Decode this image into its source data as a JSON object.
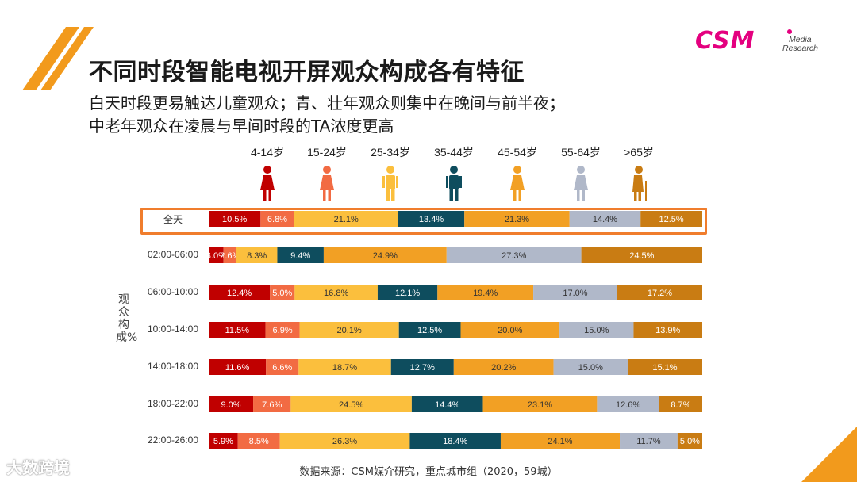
{
  "header": {
    "title": "不同时段智能电视开屏观众构成各有特征",
    "subtitle_line1": "白天时段更易触达儿童观众；青、壮年观众则集中在晚间与前半夜；",
    "subtitle_line2": "中老年观众在凌晨与早间时段的TA浓度更高"
  },
  "logo": {
    "main": "CSM",
    "line1": "Media",
    "line2": "Research"
  },
  "icons": [
    {
      "name": "child-figure-icon",
      "color": "#c00000"
    },
    {
      "name": "young-figure-icon",
      "color": "#f26b43"
    },
    {
      "name": "adult-figure-icon",
      "color": "#fbbf3d"
    },
    {
      "name": "man-figure-icon",
      "color": "#0e4d5e"
    },
    {
      "name": "woman-figure-icon",
      "color": "#f2a024"
    },
    {
      "name": "middle-aged-figure-icon",
      "color": "#b0b8c9"
    },
    {
      "name": "elder-figure-icon",
      "color": "#c97c13"
    }
  ],
  "chart_data": {
    "type": "bar",
    "stacked": true,
    "orientation": "horizontal",
    "normalized_percent": true,
    "ylabel": "观众构成%",
    "categories": [
      "全天",
      "02:00-06:00",
      "06:00-10:00",
      "10:00-14:00",
      "14:00-18:00",
      "18:00-22:00",
      "22:00-26:00"
    ],
    "highlighted_category": "全天",
    "series": [
      {
        "name": "4-14岁",
        "color": "#c00000",
        "values": [
          10.5,
          3.0,
          12.4,
          11.5,
          11.6,
          9.0,
          5.9
        ],
        "labels": [
          "10.5%",
          "3.0%",
          "12.4%",
          "11.5%",
          "11.6%",
          "9.0%",
          "5.9%"
        ]
      },
      {
        "name": "15-24岁",
        "color": "#f26b43",
        "values": [
          6.8,
          2.6,
          5.0,
          6.9,
          6.6,
          7.6,
          8.5
        ],
        "labels": [
          "6.8%",
          "2.6%",
          "5.0%",
          "6.9%",
          "6.6%",
          "7.6%",
          "8.5%"
        ]
      },
      {
        "name": "25-34岁",
        "color": "#fbbf3d",
        "values": [
          21.1,
          8.3,
          16.8,
          20.1,
          18.7,
          24.5,
          26.3
        ],
        "labels": [
          "21.1%",
          "8.3%",
          "16.8%",
          "20.1%",
          "18.7%",
          "24.5%",
          "26.3%"
        ]
      },
      {
        "name": "35-44岁",
        "color": "#0e4d5e",
        "values": [
          13.4,
          9.4,
          12.1,
          12.5,
          12.7,
          14.4,
          18.4
        ],
        "labels": [
          "13.4%",
          "9.4%",
          "12.1%",
          "12.5%",
          "12.7%",
          "14.4%",
          "18.4%"
        ]
      },
      {
        "name": "45-54岁",
        "color": "#f2a024",
        "values": [
          21.3,
          24.9,
          19.4,
          20.0,
          20.2,
          23.1,
          24.1
        ],
        "labels": [
          "21.3%",
          "24.9%",
          "19.4%",
          "20.0%",
          "20.2%",
          "23.1%",
          "24.1%"
        ]
      },
      {
        "name": "55-64岁",
        "color": "#b0b8c9",
        "values": [
          14.4,
          27.3,
          17.0,
          15.0,
          15.0,
          12.6,
          11.7
        ],
        "labels": [
          "14.4%",
          "27.3%",
          "17.0%",
          "15.0%",
          "15.0%",
          "12.6%",
          "11.7%"
        ]
      },
      {
        "name": ">65岁",
        "color": "#c97c13",
        "values": [
          12.5,
          24.5,
          17.2,
          13.9,
          15.1,
          8.7,
          5.0
        ],
        "labels": [
          "12.5%",
          "24.5%",
          "17.2%",
          "13.9%",
          "15.1%",
          "8.7%",
          "5.0%"
        ]
      }
    ]
  },
  "footer": {
    "source": "数据来源：CSM媒介研究，重点城市组（2020，59城）",
    "watermark": "大数跨境"
  },
  "colors": {
    "accent": "#f07d2d",
    "brand": "#e4007f",
    "corner": "#f29a1c"
  }
}
